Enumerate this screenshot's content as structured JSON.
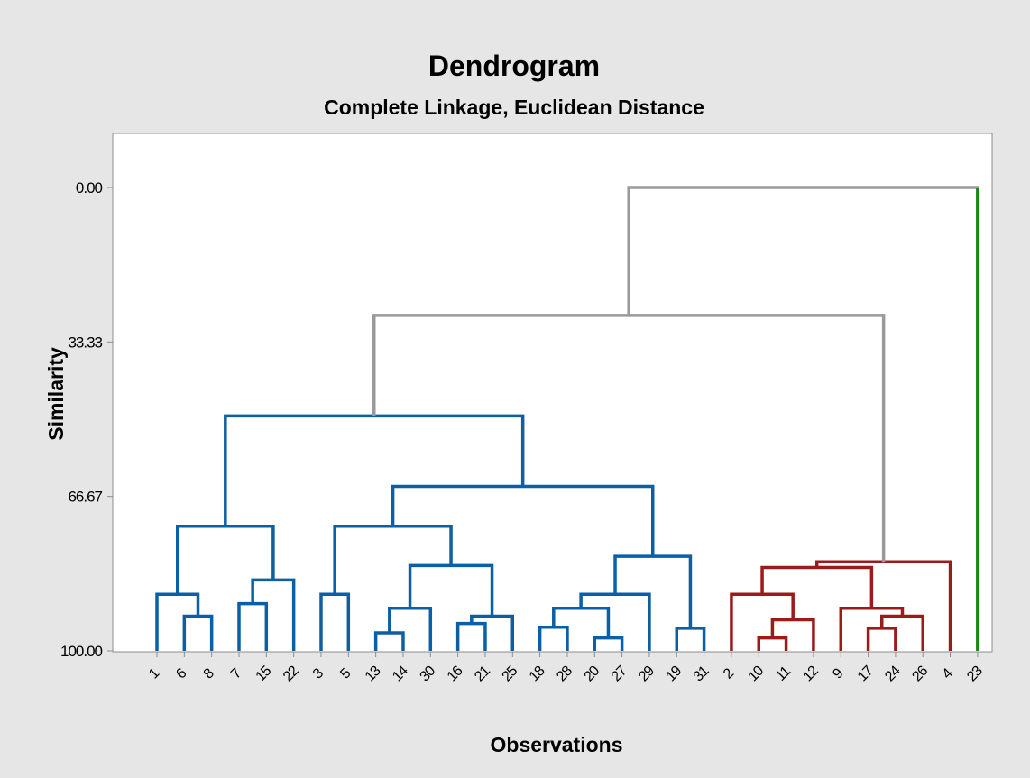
{
  "chart_data": {
    "type": "dendrogram",
    "title": "Dendrogram",
    "subtitle": "Complete Linkage, Euclidean Distance",
    "xlabel": "Observations",
    "ylabel": "Similarity",
    "y_ticks": [
      "0.00",
      "33.33",
      "66.67",
      "100.00"
    ],
    "ylim": [
      100,
      0
    ],
    "grid": false,
    "leaf_order": [
      "1",
      "6",
      "8",
      "7",
      "15",
      "22",
      "3",
      "5",
      "13",
      "14",
      "30",
      "16",
      "21",
      "25",
      "18",
      "28",
      "20",
      "27",
      "29",
      "19",
      "31",
      "2",
      "10",
      "11",
      "12",
      "9",
      "17",
      "24",
      "26",
      "4",
      "23"
    ],
    "cluster_colors": {
      "blue": "#0b5fa5",
      "red": "#9b1b1b",
      "green": "#118a11",
      "gray": "#9a9a9a"
    },
    "merges": [
      {
        "left": "6",
        "right": "8",
        "similarity": 92.5,
        "color": "blue"
      },
      {
        "left": "1",
        "right": "6-8",
        "similarity": 87.8,
        "color": "blue"
      },
      {
        "left": "7",
        "right": "15",
        "similarity": 89.8,
        "color": "blue"
      },
      {
        "left": "7-15",
        "right": "22",
        "similarity": 84.7,
        "color": "blue"
      },
      {
        "left": "1-6-8",
        "right": "7-15-22",
        "similarity": 73.1,
        "color": "blue"
      },
      {
        "left": "3",
        "right": "5",
        "similarity": 87.8,
        "color": "blue"
      },
      {
        "left": "13",
        "right": "14",
        "similarity": 96.1,
        "color": "blue"
      },
      {
        "left": "13-14",
        "right": "30",
        "similarity": 90.8,
        "color": "blue"
      },
      {
        "left": "16",
        "right": "21",
        "similarity": 94.1,
        "color": "blue"
      },
      {
        "left": "16-21",
        "right": "25",
        "similarity": 92.5,
        "color": "blue"
      },
      {
        "left": "13-14-30",
        "right": "16-21-25",
        "similarity": 81.6,
        "color": "blue"
      },
      {
        "left": "3-5",
        "right": "13-14-30-16-21-25",
        "similarity": 73.1,
        "color": "blue"
      },
      {
        "left": "18",
        "right": "28",
        "similarity": 94.9,
        "color": "blue"
      },
      {
        "left": "20",
        "right": "27",
        "similarity": 97.2,
        "color": "blue"
      },
      {
        "left": "18-28",
        "right": "20-27",
        "similarity": 90.8,
        "color": "blue"
      },
      {
        "left": "18-28-20-27",
        "right": "29",
        "similarity": 87.8,
        "color": "blue"
      },
      {
        "left": "19",
        "right": "31",
        "similarity": 95.1,
        "color": "blue"
      },
      {
        "left": "18-28-20-27-29",
        "right": "19-31",
        "similarity": 79.6,
        "color": "blue"
      },
      {
        "left": "3-5-13-14-30-16-21-25",
        "right": "18-28-20-27-29-19-31",
        "similarity": 64.5,
        "color": "blue"
      },
      {
        "left": "1-6-8-7-15-22",
        "right": "3-5-...-19-31",
        "similarity": 49.3,
        "color": "blue"
      },
      {
        "left": "10",
        "right": "11",
        "similarity": 97.2,
        "color": "red"
      },
      {
        "left": "10-11",
        "right": "12",
        "similarity": 93.3,
        "color": "red"
      },
      {
        "left": "2",
        "right": "10-11-12",
        "similarity": 87.8,
        "color": "red"
      },
      {
        "left": "17",
        "right": "24",
        "similarity": 95.1,
        "color": "red"
      },
      {
        "left": "17-24",
        "right": "26",
        "similarity": 92.5,
        "color": "red"
      },
      {
        "left": "9",
        "right": "17-24-26",
        "similarity": 90.8,
        "color": "red"
      },
      {
        "left": "2-10-11-12",
        "right": "9-17-24-26",
        "similarity": 82.0,
        "color": "red"
      },
      {
        "left": "2-...-26",
        "right": "4",
        "similarity": 80.8,
        "color": "red"
      },
      {
        "left": "blue-cluster",
        "right": "red-cluster",
        "similarity": 27.6,
        "color": "gray"
      },
      {
        "left": "blue+red",
        "right": "23",
        "similarity": 0.0,
        "color": "gray"
      }
    ]
  }
}
